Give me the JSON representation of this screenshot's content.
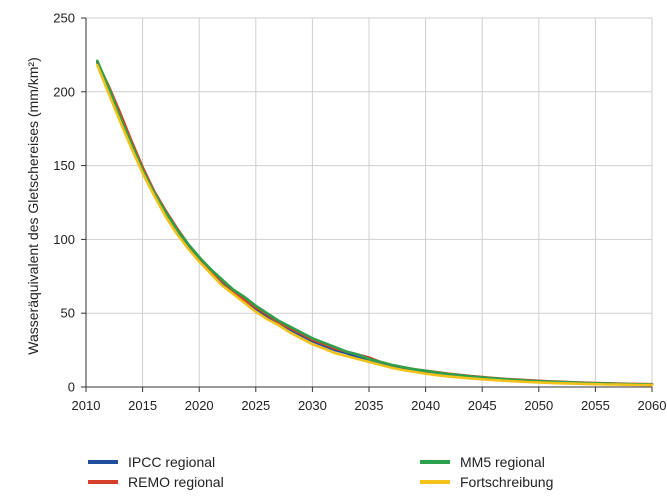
{
  "chart_data": {
    "type": "line",
    "title": "",
    "xlabel": "",
    "ylabel": "Wasseräquivalent des Gletschereises (mm/km²)",
    "xlim": [
      2010,
      2060
    ],
    "ylim": [
      0,
      250
    ],
    "xticks": [
      2010,
      2015,
      2020,
      2025,
      2030,
      2035,
      2040,
      2045,
      2050,
      2055,
      2060
    ],
    "yticks": [
      0,
      50,
      100,
      150,
      200,
      250
    ],
    "grid": true,
    "legend_position": "bottom",
    "x": [
      2011,
      2012,
      2013,
      2014,
      2015,
      2016,
      2017,
      2018,
      2019,
      2020,
      2021,
      2022,
      2023,
      2024,
      2025,
      2026,
      2027,
      2028,
      2029,
      2030,
      2031,
      2032,
      2033,
      2034,
      2035,
      2036,
      2037,
      2038,
      2039,
      2040,
      2041,
      2042,
      2043,
      2044,
      2045,
      2046,
      2047,
      2048,
      2049,
      2050,
      2051,
      2052,
      2053,
      2054,
      2055,
      2056,
      2057,
      2058,
      2059,
      2060
    ],
    "series": [
      {
        "name": "IPCC regional",
        "color": "#1f4e9c",
        "values": [
          220,
          202,
          183,
          164,
          146,
          131,
          118,
          106,
          95,
          87,
          78,
          71,
          64,
          59,
          53,
          48,
          43,
          39,
          35,
          31,
          28,
          25,
          23,
          20,
          18,
          16,
          14,
          12.5,
          11,
          10,
          9,
          8.2,
          7.4,
          6.7,
          6,
          5.4,
          4.9,
          4.4,
          4,
          3.6,
          3.3,
          3,
          2.7,
          2.5,
          2.3,
          2.1,
          1.9,
          1.8,
          1.7,
          1.6
        ]
      },
      {
        "name": "REMO regional",
        "color": "#d6402b",
        "values": [
          220,
          204,
          186,
          167,
          149,
          133,
          120,
          108,
          97,
          88,
          79,
          72,
          65,
          59,
          54,
          49,
          44,
          40,
          36,
          32,
          29,
          26,
          24,
          22,
          20,
          17,
          15,
          13.5,
          12,
          11,
          10,
          9,
          8.2,
          7.4,
          6.8,
          6.1,
          5.5,
          5,
          4.6,
          4.2,
          3.8,
          3.5,
          3.2,
          2.9,
          2.7,
          2.5,
          2.3,
          2.1,
          2,
          1.9
        ]
      },
      {
        "name": "MM5 regional",
        "color": "#2ca04a",
        "values": [
          221,
          203,
          183,
          165,
          147,
          132,
          119,
          107,
          97,
          88,
          80,
          73,
          66,
          61,
          55,
          50,
          45,
          41,
          37,
          33,
          30,
          27,
          24,
          22,
          19,
          17,
          15,
          13.5,
          12,
          11,
          9.8,
          8.8,
          8,
          7.2,
          6.5,
          5.9,
          5.3,
          4.8,
          4.3,
          3.9,
          3.6,
          3.3,
          3,
          2.7,
          2.5,
          2.3,
          2.1,
          1.9,
          1.8,
          1.7
        ]
      },
      {
        "name": "Fortschreibung",
        "color": "#f2c21a",
        "values": [
          218,
          199,
          180,
          162,
          145,
          130,
          116,
          104,
          94,
          85,
          77,
          69,
          63,
          57,
          51,
          46,
          42,
          37,
          33,
          29,
          26,
          23,
          21,
          19,
          17,
          15,
          13,
          11.5,
          10.2,
          9,
          8,
          7.2,
          6.5,
          5.8,
          5.2,
          4.7,
          4.2,
          3.8,
          3.4,
          3.1,
          2.8,
          2.5,
          2.3,
          2.1,
          1.9,
          1.7,
          1.6,
          1.5,
          1.4,
          1.3
        ]
      }
    ]
  }
}
